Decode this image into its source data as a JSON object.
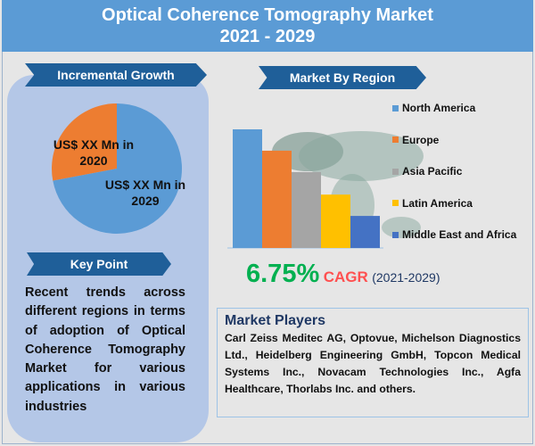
{
  "header": {
    "title_line1": "Optical Coherence Tomography Market",
    "title_line2": "2021 - 2029",
    "color": "#5b9bd5"
  },
  "incremental_growth": {
    "heading": "Incremental Growth",
    "label_2020": "US$ XX Mn in 2020",
    "label_2029": "US$ XX Mn in 2029"
  },
  "key_point": {
    "heading": "Key Point",
    "text": "Recent trends across different regions in terms of adoption of Optical Coherence Tomography Market for various applications in various industries"
  },
  "region": {
    "heading": "Market By Region"
  },
  "cagr": {
    "value": "6.75%",
    "label": "CAGR",
    "period": "(2021-2029)"
  },
  "market_players": {
    "heading": "Market Players",
    "text": "Carl Zeiss Meditec AG, Optovue, Michelson Diagnostics Ltd., Heidelberg Engineering GmbH, Topcon Medical Systems Inc., Novacam Technologies Inc., Agfa Healthcare, Thorlabs Inc. and others."
  },
  "chart_data": [
    {
      "type": "pie",
      "slices": [
        {
          "label": "US$ XX Mn in 2020",
          "share": 0.28,
          "color": "#ed7d31"
        },
        {
          "label": "US$ XX Mn in 2029",
          "share": 0.72,
          "color": "#5b9bd5"
        }
      ]
    },
    {
      "type": "bar",
      "categories": [
        "North America",
        "Europe",
        "Asia Pacific",
        "Latin America",
        "Middle East and Africa"
      ],
      "values": [
        100,
        82,
        64,
        45,
        27
      ],
      "colors": [
        "#5b9bd5",
        "#ed7d31",
        "#a5a5a5",
        "#ffc000",
        "#4472c4"
      ],
      "legend": "right",
      "grid": false
    }
  ]
}
